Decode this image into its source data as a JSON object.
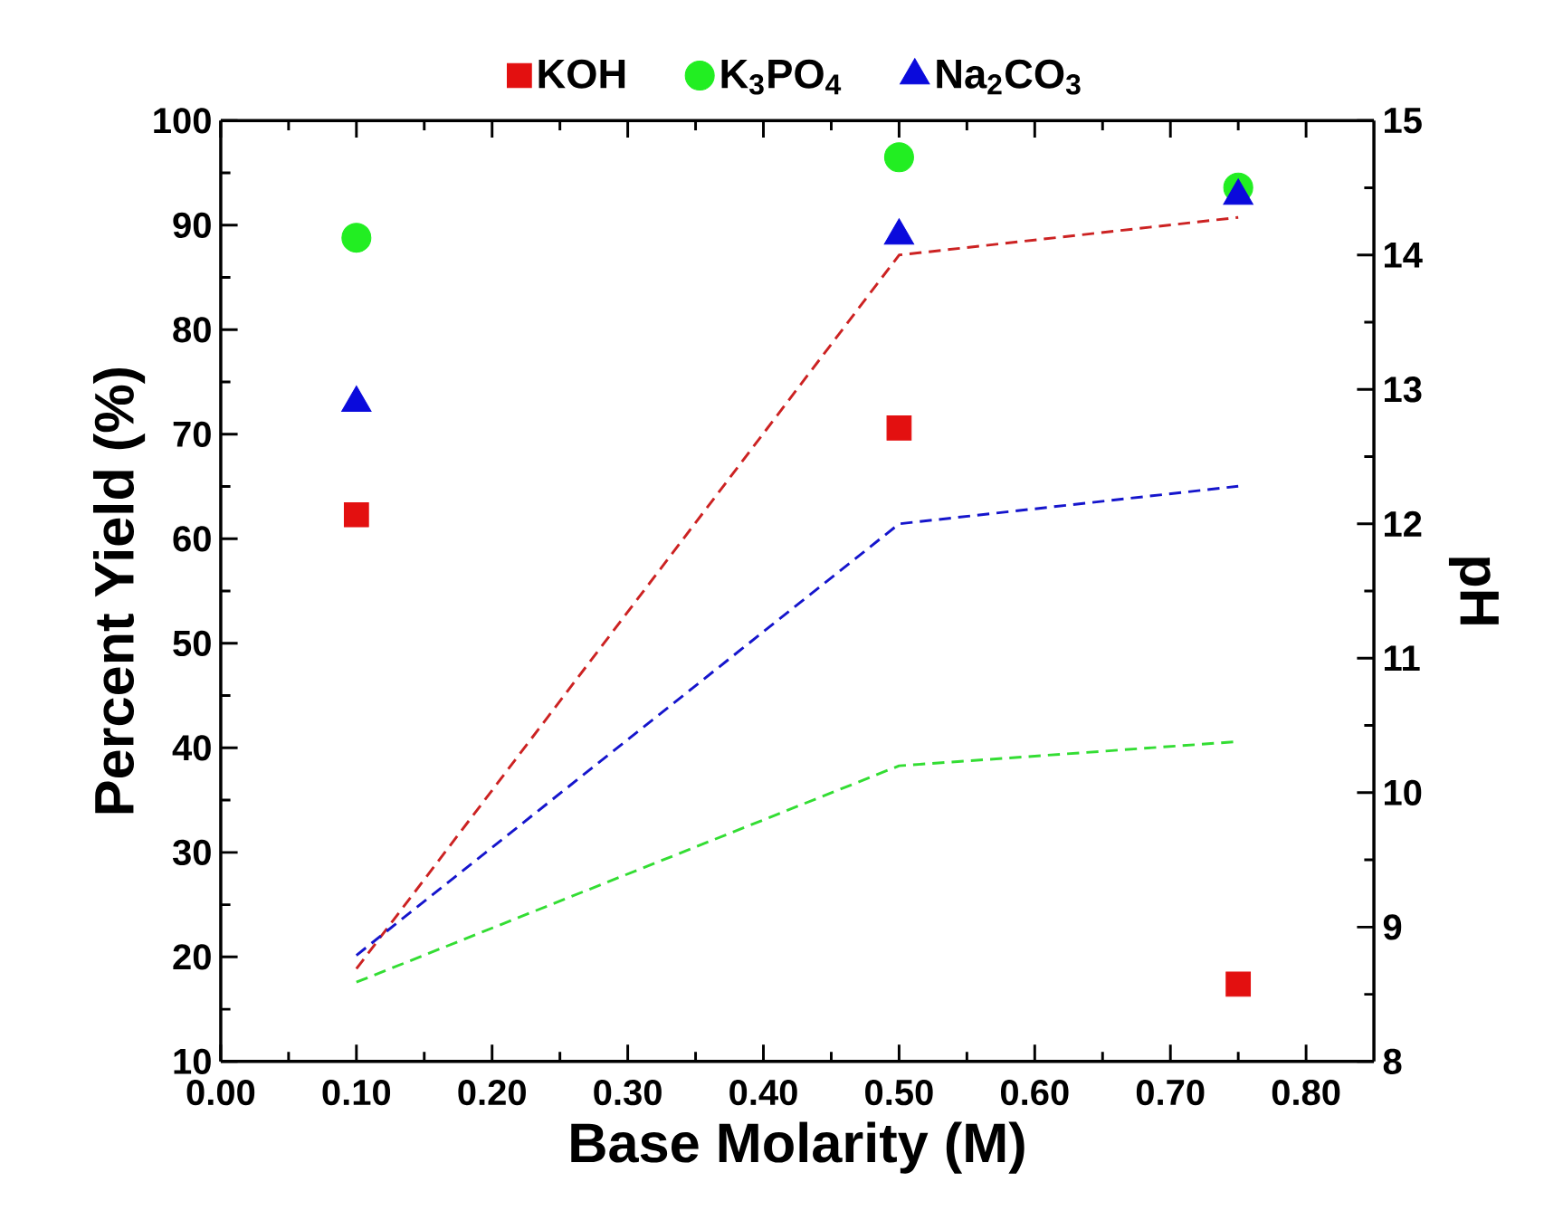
{
  "chart_data": {
    "type": "scatter",
    "xlabel": "Base Molarity (M)",
    "ylabel": "Percent Yield (%)",
    "y2label": "pH",
    "xlim": [
      0,
      0.85
    ],
    "xticks": [
      {
        "value": 0,
        "label": "0.00"
      },
      {
        "value": 0.1,
        "label": "0.10"
      },
      {
        "value": 0.2,
        "label": "0.20"
      },
      {
        "value": 0.3,
        "label": "0.30"
      },
      {
        "value": 0.4,
        "label": "0.40"
      },
      {
        "value": 0.5,
        "label": "0.50"
      },
      {
        "value": 0.6,
        "label": "0.60"
      },
      {
        "value": 0.7,
        "label": "0.70"
      },
      {
        "value": 0.8,
        "label": "0.80"
      }
    ],
    "ylim": [
      10,
      100
    ],
    "yticks": [
      10,
      20,
      30,
      40,
      50,
      60,
      70,
      80,
      90,
      100
    ],
    "y2lim": [
      8,
      15
    ],
    "y2ticks": [
      8,
      9,
      10,
      11,
      12,
      13,
      14,
      15
    ],
    "legend": "top",
    "grid": false,
    "series": [
      {
        "name": "KOH",
        "marker": "square",
        "color": "#e31010",
        "x": [
          0.1,
          0.5,
          0.75
        ],
        "values": [
          62.3,
          70.6,
          17.4
        ]
      },
      {
        "name": "K$_{3}$PO$_{4}$",
        "marker": "circle",
        "color": "#22ee22",
        "x": [
          0.1,
          0.5,
          0.75
        ],
        "values": [
          88.8,
          96.5,
          93.6
        ]
      },
      {
        "name": "Na$_{2}$CO$_{3}$",
        "marker": "triangle",
        "color": "#0a0adc",
        "x": [
          0.1,
          0.5,
          0.75
        ],
        "values": [
          73.0,
          89.0,
          92.8
        ]
      },
      {
        "type": "line",
        "axis": "y2",
        "line_style": "dashed",
        "marker": "none",
        "color": "#cc2222",
        "x": [
          0.1,
          0.5,
          0.75
        ],
        "values": [
          8.69,
          14.0,
          14.28
        ]
      },
      {
        "type": "line",
        "axis": "y2",
        "line_style": "dashed",
        "marker": "none",
        "color": "#1515cc",
        "x": [
          0.1,
          0.5,
          0.75
        ],
        "values": [
          8.79,
          12.0,
          12.28
        ]
      },
      {
        "type": "line",
        "axis": "y2",
        "line_style": "dashed",
        "marker": "none",
        "color": "#33dd33",
        "x": [
          0.1,
          0.5,
          0.75
        ],
        "values": [
          8.59,
          10.2,
          10.38
        ]
      }
    ]
  }
}
